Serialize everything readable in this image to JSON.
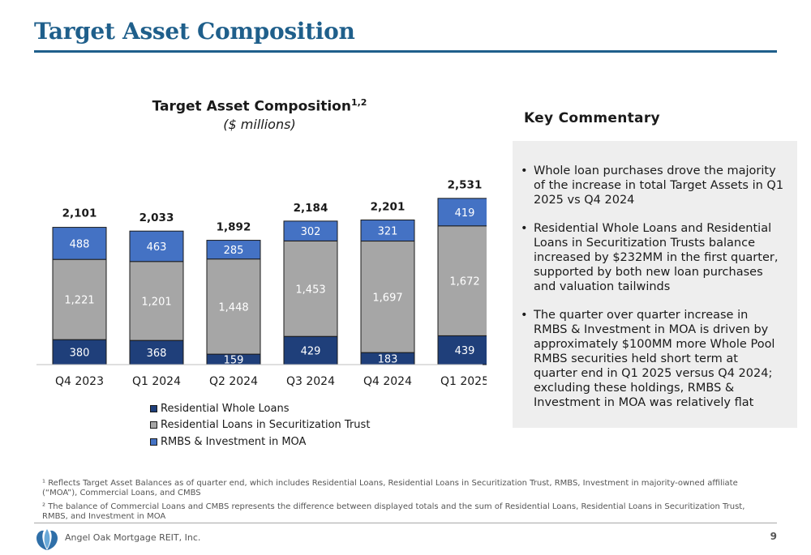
{
  "header": {
    "title": "Target Asset Composition"
  },
  "chart_data": {
    "type": "bar",
    "stacked": true,
    "title": "Target Asset Composition",
    "title_superscript": "1,2",
    "subtitle": "($ millions)",
    "categories": [
      "Q4 2023",
      "Q1 2024",
      "Q2 2024",
      "Q3 2024",
      "Q4 2024",
      "Q1 2025"
    ],
    "series": [
      {
        "name": "Residential Whole Loans",
        "color": "#1f3f7a",
        "values": [
          380,
          368,
          159,
          429,
          183,
          439
        ]
      },
      {
        "name": "Residential Loans in Securitization Trust",
        "color": "#a6a6a6",
        "values": [
          1221,
          1201,
          1448,
          1453,
          1697,
          1672
        ]
      },
      {
        "name": "RMBS & Investment in MOA",
        "color": "#4472c4",
        "values": [
          488,
          463,
          285,
          302,
          321,
          419
        ]
      }
    ],
    "totals": [
      2101,
      2033,
      1892,
      2184,
      2201,
      2531
    ],
    "legend_position": "bottom",
    "grid": false
  },
  "commentary": {
    "heading": "Key Commentary",
    "bullets": [
      "Whole loan purchases drove the majority of the increase in total Target Assets in Q1 2025 vs Q4 2024",
      "Residential Whole Loans and Residential Loans in Securitization Trusts balance increased by $232MM in the first quarter, supported by both new loan purchases and valuation tailwinds",
      "The quarter over quarter increase in RMBS & Investment in MOA is driven by approximately $100MM more Whole Pool RMBS securities held short term at quarter end in Q1 2025 versus Q4 2024; excluding these holdings, RMBS & Investment in MOA was relatively flat"
    ]
  },
  "footnotes": [
    "¹ Reflects Target Asset Balances as of quarter end, which includes Residential Loans, Residential Loans in Securitization Trust, RMBS, Investment in majority-owned affiliate (“MOA”), Commercial Loans, and CMBS",
    "² The balance of Commercial Loans and CMBS represents the difference between displayed totals and the sum of Residential Loans, Residential Loans in Securitization Trust, RMBS, and Investment in MOA"
  ],
  "footer": {
    "company": "Angel Oak Mortgage REIT, Inc.",
    "page_number": "9",
    "logo_icon": "oak-tree-logo-icon"
  }
}
